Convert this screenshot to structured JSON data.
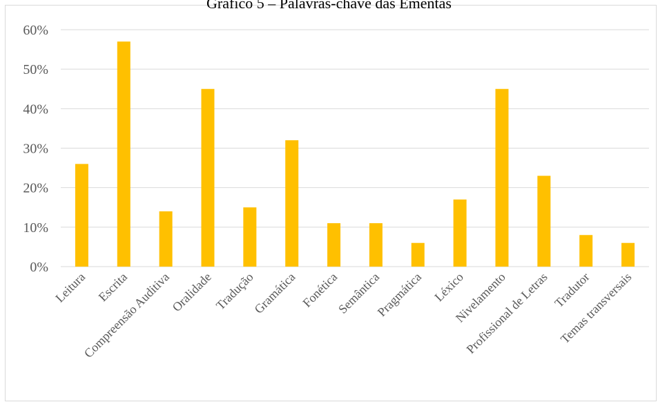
{
  "chart_data": {
    "type": "bar",
    "title": "Gráfico 5 – Palavras-chave das Ementas",
    "categories": [
      "Leitura",
      "Escrita",
      "Compreensão Auditiva",
      "Oralidade",
      "Tradução",
      "Gramática",
      "Fonética",
      "Semântica",
      "Pragmática",
      "Léxico",
      "Nivelamento",
      "Profissional de Letras",
      "Tradutor",
      "Temas transversais"
    ],
    "values": [
      0.26,
      0.57,
      0.14,
      0.45,
      0.15,
      0.32,
      0.11,
      0.11,
      0.06,
      0.17,
      0.45,
      0.23,
      0.08,
      0.06
    ],
    "y_ticks": [
      "0%",
      "10%",
      "20%",
      "30%",
      "40%",
      "50%",
      "60%"
    ],
    "ylim": [
      0,
      0.6
    ],
    "xlabel": "",
    "ylabel": "",
    "grid": true,
    "colors": {
      "bar": "#FFC000",
      "grid": "#d9d9d9",
      "text": "#595959"
    }
  }
}
